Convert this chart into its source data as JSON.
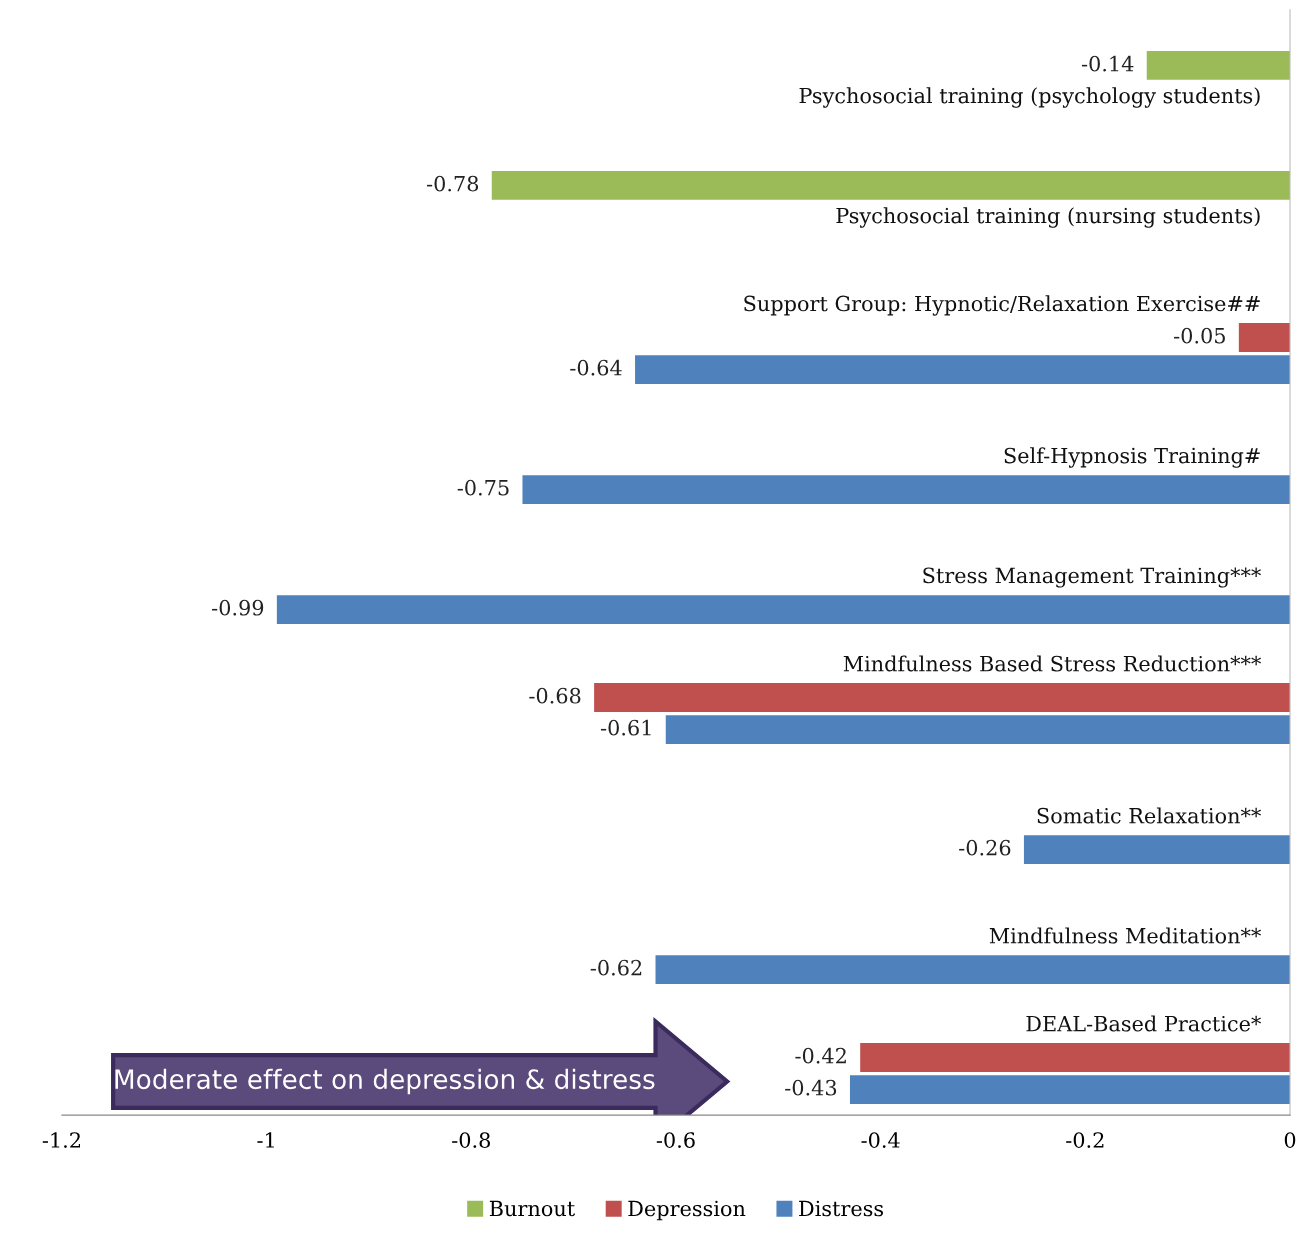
{
  "chart_data": {
    "type": "bar",
    "orientation": "horizontal",
    "categories": [
      "Psychosocial training (psychology students)",
      "Psychosocial training (nursing students)",
      "Support Group: Hypnotic/Relaxation Exercise##",
      "Self-Hypnosis Training#",
      "Stress Management Training***",
      "Mindfulness Based Stress Reduction***",
      "Somatic Relaxation**",
      "Mindfulness Meditation**",
      "DEAL-Based Practice*"
    ],
    "series": [
      {
        "name": "Burnout",
        "color": "#9bbb59",
        "values": [
          -0.14,
          -0.78,
          null,
          null,
          null,
          null,
          null,
          null,
          null
        ]
      },
      {
        "name": "Depression",
        "color": "#c0504d",
        "values": [
          null,
          null,
          -0.05,
          null,
          null,
          -0.68,
          null,
          null,
          -0.42
        ]
      },
      {
        "name": "Distress",
        "color": "#4f81bd",
        "values": [
          null,
          null,
          -0.64,
          -0.75,
          -0.99,
          -0.61,
          -0.26,
          -0.62,
          -0.43
        ]
      }
    ],
    "xlim": [
      -1.2,
      0
    ],
    "xticks": [
      -1.2,
      -1,
      -0.8,
      -0.6,
      -0.4,
      -0.2,
      0
    ],
    "data_labels": true,
    "legend": "bottom",
    "grid": false,
    "annotations": [
      "Moderate effect on depression & distress"
    ]
  }
}
